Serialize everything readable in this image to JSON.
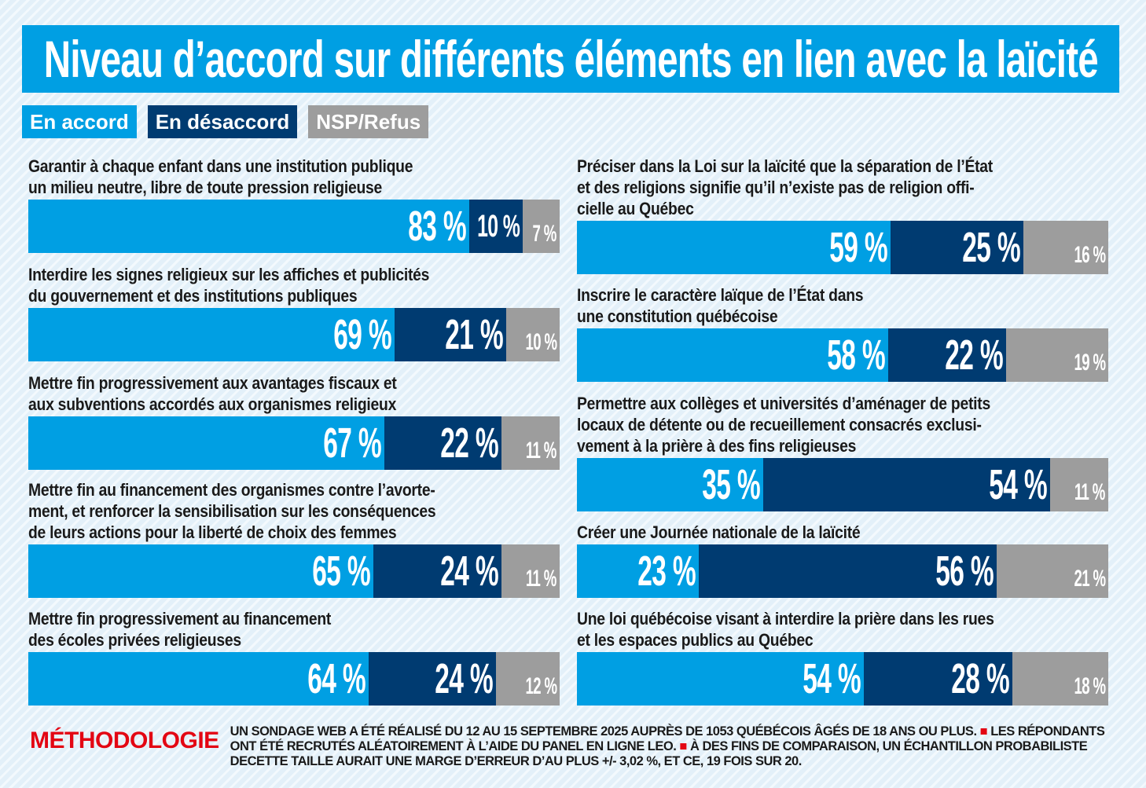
{
  "chart_data": {
    "type": "bar",
    "orientation": "horizontal-stacked",
    "title": "Niveau d’accord sur différents éléments en lien avec la laïcité",
    "legend": [
      "En accord",
      "En désaccord",
      "NSP/Refus"
    ],
    "legend_placement": "top-left",
    "colors": {
      "accord": "#009fe3",
      "desaccord": "#003b71",
      "nsp": "#9d9d9d"
    },
    "unit": "%",
    "items": [
      {
        "label": [
          "Garantir à chaque enfant dans une institution publique",
          "un milieu neutre, libre de toute pression religieuse"
        ],
        "values": [
          83,
          10,
          7
        ],
        "labels": [
          "83 %",
          "10 %",
          "7 %"
        ]
      },
      {
        "label": [
          "Interdire les signes religieux sur les affiches et publicités",
          "du gouvernement et des institutions publiques"
        ],
        "values": [
          69,
          21,
          10
        ],
        "labels": [
          "69 %",
          "21 %",
          "10 %"
        ]
      },
      {
        "label": [
          "Mettre fin progressivement aux avantages fiscaux et",
          "aux subventions accordés aux organismes religieux"
        ],
        "values": [
          67,
          22,
          11
        ],
        "labels": [
          "67 %",
          "22 %",
          "11 %"
        ]
      },
      {
        "label": [
          "Mettre fin au financement des organismes contre l’avorte-",
          "ment, et renforcer la sensibilisation sur les conséquences",
          "de leurs actions pour la liberté de choix des femmes"
        ],
        "values": [
          65,
          24,
          11
        ],
        "labels": [
          "65 %",
          "24 %",
          "11 %"
        ]
      },
      {
        "label": [
          "Mettre fin progressivement au financement",
          "des écoles privées religieuses"
        ],
        "values": [
          64,
          24,
          12
        ],
        "labels": [
          "64 %",
          "24 %",
          "12 %"
        ]
      },
      {
        "label": [
          "Préciser dans la Loi sur la laïcité que la séparation de l’État",
          "et des religions signifie qu’il n’existe pas de religion offi-",
          "cielle au Québec"
        ],
        "values": [
          59,
          25,
          16
        ],
        "labels": [
          "59 %",
          "25 %",
          "16 %"
        ]
      },
      {
        "label": [
          "Inscrire le caractère laïque de l’État dans",
          "une constitution québécoise"
        ],
        "values": [
          58,
          22,
          19
        ],
        "labels": [
          "58 %",
          "22 %",
          "19 %"
        ]
      },
      {
        "label": [
          "Permettre aux collèges et universités d’aménager de petits",
          "locaux de détente ou de recueillement consacrés exclusi-",
          "vement à la prière à des fins religieuses"
        ],
        "values": [
          35,
          54,
          11
        ],
        "labels": [
          "35 %",
          "54 %",
          "11 %"
        ]
      },
      {
        "label": [
          "Créer une Journée nationale de la laïcité"
        ],
        "values": [
          23,
          56,
          21
        ],
        "labels": [
          "23 %",
          "56 %",
          "21 %"
        ]
      },
      {
        "label": [
          "Une loi québécoise visant à interdire la prière dans les rues",
          "et les espaces publics au Québec"
        ],
        "values": [
          54,
          28,
          18
        ],
        "labels": [
          "54 %",
          "28 %",
          "18 %"
        ]
      }
    ]
  },
  "methodology": {
    "heading": "MÉTHODOLOGIE",
    "parts": [
      "UN SONDAGE WEB A ÉTÉ RÉALISÉ DU 12 AU 15 SEPTEMBRE 2025 AUPRÈS DE 1053 QUÉBÉCOIS ÂGÉS DE 18 ANS OU PLUS.",
      "LES RÉPONDANTS ONT ÉTÉ RECRUTÉS ALÉATOIREMENT À L’AIDE DU PANEL EN LIGNE LEO.",
      "À DES FINS DE COMPARAISON, UN ÉCHANTILLON PROBABILISTE DECETTE TAILLE AURAIT UNE MARGE D’ERREUR D’AU PLUS +/- 3,02 %, ET CE, 19 FOIS SUR 20."
    ]
  }
}
